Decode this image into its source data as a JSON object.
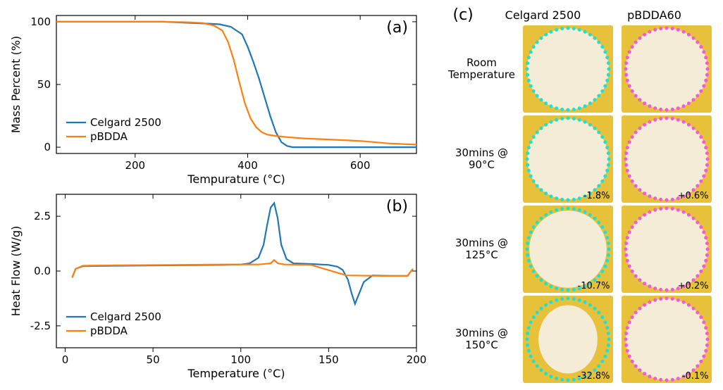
{
  "chart_a": {
    "type": "line",
    "panel_label": "(a)",
    "xlabel": "Tempurature (°C)",
    "ylabel": "Mass Percent (%)",
    "xlim": [
      60,
      700
    ],
    "ylim": [
      -5,
      105
    ],
    "xticks": [
      200,
      400,
      600
    ],
    "yticks": [
      0,
      50,
      100
    ],
    "axis_color": "#000000",
    "line_width": 2.2,
    "label_fontsize": 16,
    "tick_fontsize": 15,
    "background_color": "#ffffff",
    "legend_pos": "lower-left",
    "series": [
      {
        "name": "Celgard 2500",
        "color": "#1f77b4",
        "x": [
          60,
          150,
          250,
          300,
          330,
          350,
          370,
          390,
          400,
          410,
          420,
          430,
          440,
          450,
          460,
          470,
          480,
          500,
          550,
          600,
          700
        ],
        "y": [
          100,
          100,
          100,
          99,
          98.5,
          98,
          96,
          90,
          80,
          68,
          55,
          40,
          25,
          12,
          4,
          1,
          0,
          0,
          0,
          0,
          0
        ]
      },
      {
        "name": "pBDDA",
        "color": "#ff7f0e",
        "x": [
          60,
          150,
          250,
          300,
          320,
          340,
          355,
          365,
          375,
          385,
          395,
          405,
          415,
          425,
          435,
          450,
          470,
          500,
          550,
          600,
          650,
          700
        ],
        "y": [
          100,
          100,
          100,
          99.5,
          99,
          97,
          93,
          84,
          70,
          52,
          35,
          23,
          16,
          12,
          10,
          9,
          8,
          7,
          6,
          5,
          3,
          2
        ]
      }
    ]
  },
  "chart_b": {
    "type": "line",
    "panel_label": "(b)",
    "xlabel": "Temperature (°C)",
    "ylabel": "Heat Flow (W/g)",
    "xlim": [
      -5,
      200
    ],
    "ylim": [
      -3.5,
      3.5
    ],
    "xticks": [
      0,
      50,
      100,
      150,
      200
    ],
    "yticks": [
      -2.5,
      0.0,
      2.5
    ],
    "axis_color": "#000000",
    "line_width": 2.2,
    "label_fontsize": 16,
    "tick_fontsize": 15,
    "background_color": "#ffffff",
    "legend_pos": "lower-left",
    "series": [
      {
        "name": "Celgard 2500",
        "color": "#1f77b4",
        "x": [
          4,
          6,
          10,
          30,
          60,
          90,
          100,
          105,
          110,
          113,
          115,
          117,
          119,
          121,
          123,
          126,
          130,
          140,
          150,
          155,
          158,
          161,
          163,
          165,
          167,
          170,
          175,
          185,
          195,
          196,
          198
        ],
        "y": [
          -0.3,
          0.1,
          0.22,
          0.24,
          0.26,
          0.28,
          0.3,
          0.35,
          0.6,
          1.2,
          2.1,
          2.9,
          3.1,
          2.4,
          1.2,
          0.55,
          0.35,
          0.32,
          0.28,
          0.2,
          0.05,
          -0.4,
          -1.0,
          -1.5,
          -1.1,
          -0.5,
          -0.2,
          -0.22,
          -0.22,
          -0.1,
          0.1
        ]
      },
      {
        "name": "pBDDA",
        "color": "#ff7f0e",
        "x": [
          4,
          6,
          10,
          30,
          60,
          90,
          110,
          117,
          119,
          121,
          125,
          140,
          160,
          180,
          195,
          196,
          198
        ],
        "y": [
          -0.3,
          0.1,
          0.24,
          0.26,
          0.28,
          0.3,
          0.3,
          0.35,
          0.5,
          0.35,
          0.3,
          0.28,
          -0.2,
          -0.22,
          -0.22,
          -0.1,
          0.1
        ]
      }
    ]
  },
  "panel_c": {
    "panel_label": "(c)",
    "col_headers": [
      "Celgard 2500",
      "pBDDA60"
    ],
    "row_labels": [
      "Room\nTemperature",
      "30mins @\n90°C",
      "30mins @\n125°C",
      "30mins @\n150°C"
    ],
    "tile_bg": "#e8c13b",
    "disc_fill": "#f4ecd7",
    "outline_colors": [
      "#21e0d0",
      "#f25ad6"
    ],
    "outline_style": "dashed-dots",
    "dot_radius": 2.5,
    "tiles": [
      [
        {
          "pct": null,
          "shrink": 0.0
        },
        {
          "pct": null,
          "shrink": 0.0
        }
      ],
      [
        {
          "pct": "-1.8%",
          "shrink": 0.018
        },
        {
          "pct": "+0.6%",
          "shrink": -0.006
        }
      ],
      [
        {
          "pct": "-10.7%",
          "shrink": 0.107
        },
        {
          "pct": "+0.2%",
          "shrink": -0.002
        }
      ],
      [
        {
          "pct": "-32.8%",
          "shrink": 0.328
        },
        {
          "pct": "-0.1%",
          "shrink": 0.001
        }
      ]
    ]
  }
}
